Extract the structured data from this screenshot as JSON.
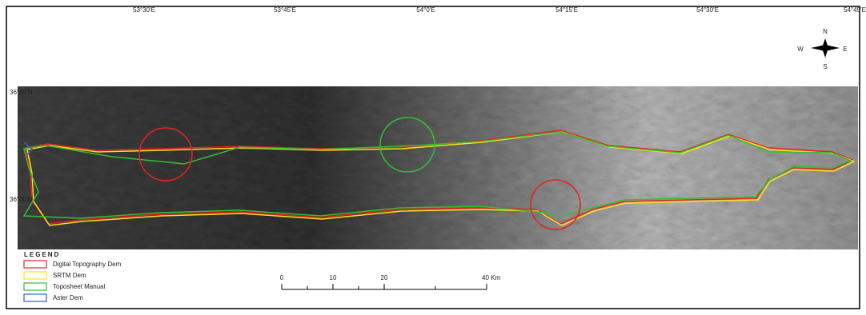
{
  "map": {
    "top_labels": [
      "53°30'E",
      "53°45'E",
      "54°0'E",
      "54°15'E",
      "54°30'E",
      "54°45'E"
    ],
    "left_labels": [
      "36°45'N",
      "36°30'N"
    ],
    "compass": {
      "n": "N",
      "s": "S",
      "e": "E",
      "w": "W"
    },
    "legend": {
      "title": "LEGEND",
      "items": [
        "Digital Topography Dem",
        "SRTM Dem",
        "Toposheet Manual",
        "Aster Dem"
      ]
    },
    "scale": {
      "labels": [
        "0",
        "10",
        "20",
        "40 Km"
      ]
    }
  }
}
